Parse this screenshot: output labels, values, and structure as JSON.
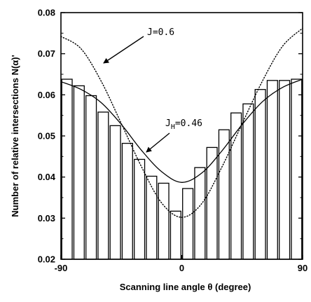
{
  "chart_data": {
    "type": "bar",
    "title": "",
    "xlabel": "Scanning line angle θ (degree)",
    "ylabel": "Number of relative intersections N(α)'",
    "xlim": [
      -90,
      90
    ],
    "ylim": [
      0.02,
      0.08
    ],
    "x_tick_labels": [
      "-90",
      "0",
      "90"
    ],
    "x_ticks": [
      -90,
      0,
      90
    ],
    "y_ticks": [
      0.02,
      0.03,
      0.04,
      0.05,
      0.06,
      0.07,
      0.08
    ],
    "y_tick_labels": [
      "0.02",
      "0.03",
      "0.04",
      "0.05",
      "0.06",
      "0.07",
      "0.08"
    ],
    "bars": {
      "x": [
        -85.5,
        -76.5,
        -67.5,
        -58.5,
        -49.5,
        -40.5,
        -31.5,
        -22.5,
        -13.5,
        -4.5,
        4.5,
        13.5,
        22.5,
        31.5,
        40.5,
        49.5,
        58.5,
        67.5,
        76.5,
        85.5
      ],
      "values": [
        0.0638,
        0.0622,
        0.0598,
        0.0558,
        0.0525,
        0.0482,
        0.0443,
        0.0402,
        0.0385,
        0.0317,
        0.0372,
        0.0423,
        0.0472,
        0.0515,
        0.0556,
        0.0578,
        0.0613,
        0.0635,
        0.0635,
        0.0638
      ],
      "fill": "#ffffff",
      "stroke": "#000000"
    },
    "series": [
      {
        "name": "J_H=0.46",
        "style": "solid",
        "x": [
          -90,
          -75,
          -60,
          -45,
          -30,
          -15,
          0,
          15,
          30,
          45,
          60,
          75,
          90
        ],
        "y": [
          0.0632,
          0.0613,
          0.0581,
          0.0528,
          0.0465,
          0.0413,
          0.0387,
          0.041,
          0.0464,
          0.0528,
          0.0583,
          0.0618,
          0.0638
        ]
      },
      {
        "name": "J=0.6",
        "style": "dotted",
        "x": [
          -90,
          -75,
          -60,
          -45,
          -30,
          -15,
          0,
          15,
          30,
          45,
          60,
          75,
          90
        ],
        "y": [
          0.0742,
          0.0712,
          0.0633,
          0.053,
          0.0425,
          0.0337,
          0.0302,
          0.0336,
          0.0425,
          0.053,
          0.0633,
          0.0718,
          0.0762
        ]
      }
    ],
    "annotations": [
      {
        "text": "J=0.6",
        "points_to_series": "J=0.6"
      },
      {
        "text_main": "J",
        "text_sub": "H",
        "text_rest": "=0.46",
        "points_to_series": "J_H=0.46"
      }
    ],
    "grid": false,
    "legend": "none"
  }
}
